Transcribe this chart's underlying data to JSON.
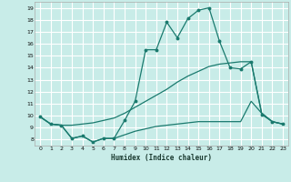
{
  "xlabel": "Humidex (Indice chaleur)",
  "bg_color": "#c8ece8",
  "line_color": "#1a7a6e",
  "grid_color": "#ffffff",
  "xlim": [
    -0.5,
    23.5
  ],
  "ylim": [
    7.5,
    19.5
  ],
  "xticks": [
    0,
    1,
    2,
    3,
    4,
    5,
    6,
    7,
    8,
    9,
    10,
    11,
    12,
    13,
    14,
    15,
    16,
    17,
    18,
    19,
    20,
    21,
    22,
    23
  ],
  "yticks": [
    8,
    9,
    10,
    11,
    12,
    13,
    14,
    15,
    16,
    17,
    18,
    19
  ],
  "series1": [
    [
      0,
      9.9
    ],
    [
      1,
      9.3
    ],
    [
      2,
      9.2
    ],
    [
      3,
      8.1
    ],
    [
      4,
      8.3
    ],
    [
      5,
      7.8
    ],
    [
      6,
      8.1
    ],
    [
      7,
      8.1
    ],
    [
      8,
      9.6
    ],
    [
      9,
      11.2
    ],
    [
      10,
      15.5
    ],
    [
      11,
      15.5
    ],
    [
      12,
      17.8
    ],
    [
      13,
      16.5
    ],
    [
      14,
      18.1
    ],
    [
      15,
      18.8
    ],
    [
      16,
      19.0
    ],
    [
      17,
      16.2
    ],
    [
      18,
      14.0
    ],
    [
      19,
      13.9
    ],
    [
      20,
      14.5
    ],
    [
      21,
      10.1
    ],
    [
      22,
      9.5
    ],
    [
      23,
      9.3
    ]
  ],
  "series2": [
    [
      0,
      9.9
    ],
    [
      1,
      9.3
    ],
    [
      2,
      9.2
    ],
    [
      3,
      9.2
    ],
    [
      4,
      9.3
    ],
    [
      5,
      9.4
    ],
    [
      6,
      9.6
    ],
    [
      7,
      9.8
    ],
    [
      8,
      10.2
    ],
    [
      9,
      10.7
    ],
    [
      10,
      11.2
    ],
    [
      11,
      11.7
    ],
    [
      12,
      12.2
    ],
    [
      13,
      12.8
    ],
    [
      14,
      13.3
    ],
    [
      15,
      13.7
    ],
    [
      16,
      14.1
    ],
    [
      17,
      14.3
    ],
    [
      18,
      14.4
    ],
    [
      19,
      14.5
    ],
    [
      20,
      14.5
    ],
    [
      21,
      10.2
    ],
    [
      22,
      9.5
    ],
    [
      23,
      9.3
    ]
  ],
  "series3": [
    [
      0,
      9.9
    ],
    [
      1,
      9.3
    ],
    [
      2,
      9.2
    ],
    [
      3,
      8.1
    ],
    [
      4,
      8.3
    ],
    [
      5,
      7.8
    ],
    [
      6,
      8.1
    ],
    [
      7,
      8.1
    ],
    [
      8,
      8.4
    ],
    [
      9,
      8.7
    ],
    [
      10,
      8.9
    ],
    [
      11,
      9.1
    ],
    [
      12,
      9.2
    ],
    [
      13,
      9.3
    ],
    [
      14,
      9.4
    ],
    [
      15,
      9.5
    ],
    [
      16,
      9.5
    ],
    [
      17,
      9.5
    ],
    [
      18,
      9.5
    ],
    [
      19,
      9.5
    ],
    [
      20,
      11.2
    ],
    [
      21,
      10.2
    ],
    [
      22,
      9.5
    ],
    [
      23,
      9.3
    ]
  ]
}
